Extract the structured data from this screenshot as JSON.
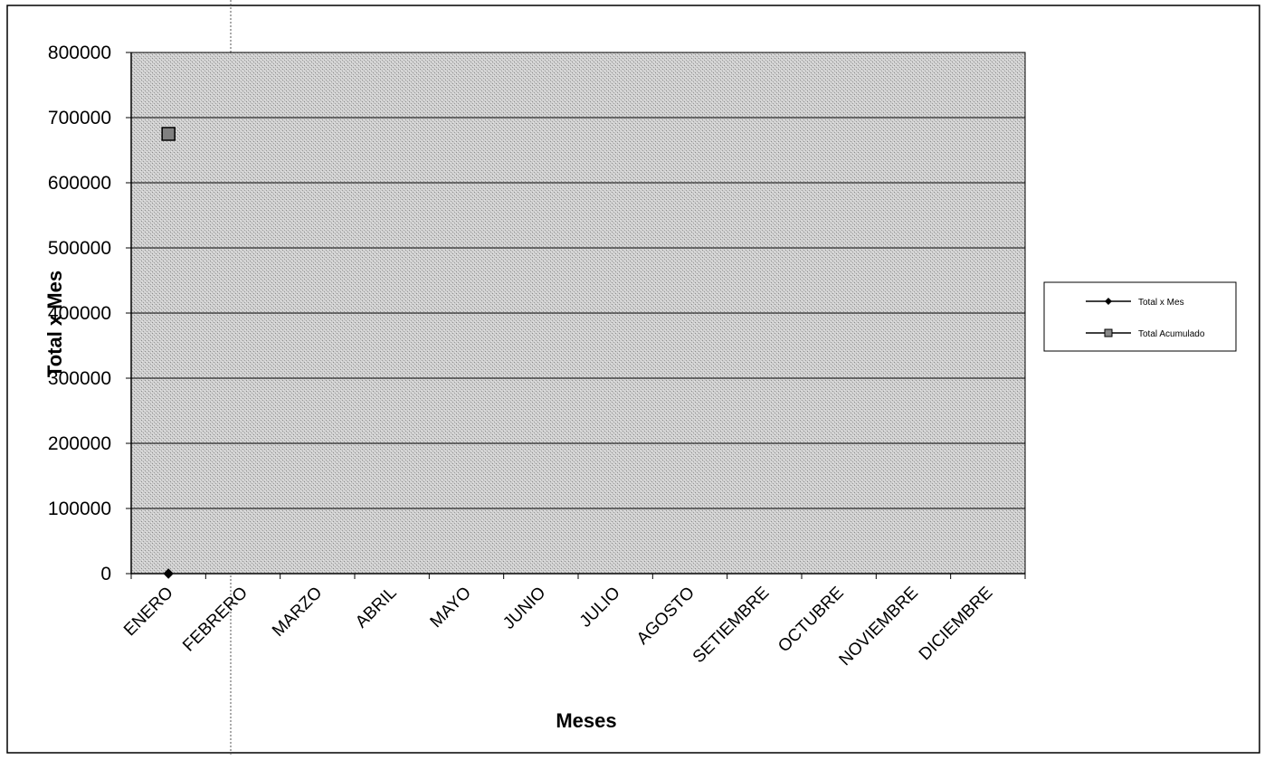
{
  "chart_data": {
    "type": "line",
    "title": "",
    "xlabel": "Meses",
    "ylabel": "Total x Mes",
    "categories": [
      "ENERO",
      "FEBRERO",
      "MARZO",
      "ABRIL",
      "MAYO",
      "JUNIO",
      "JULIO",
      "AGOSTO",
      "SETIEMBRE",
      "OCTUBRE",
      "NOVIEMBRE",
      "DICIEMBRE"
    ],
    "y_ticks": [
      "0",
      "100000",
      "200000",
      "300000",
      "400000",
      "500000",
      "600000",
      "700000",
      "800000"
    ],
    "ylim": [
      0,
      800000
    ],
    "grid": true,
    "legend_position": "right",
    "series": [
      {
        "name": "Total x Mes",
        "marker": "diamond",
        "color": "#000000",
        "values": [
          0,
          null,
          null,
          null,
          null,
          null,
          null,
          null,
          null,
          null,
          null,
          null
        ]
      },
      {
        "name": "Total Acumulado",
        "marker": "square",
        "color": "#808080",
        "values": [
          675000,
          null,
          null,
          null,
          null,
          null,
          null,
          null,
          null,
          null,
          null,
          null
        ]
      }
    ],
    "plot_background": "#c8c8c8"
  }
}
